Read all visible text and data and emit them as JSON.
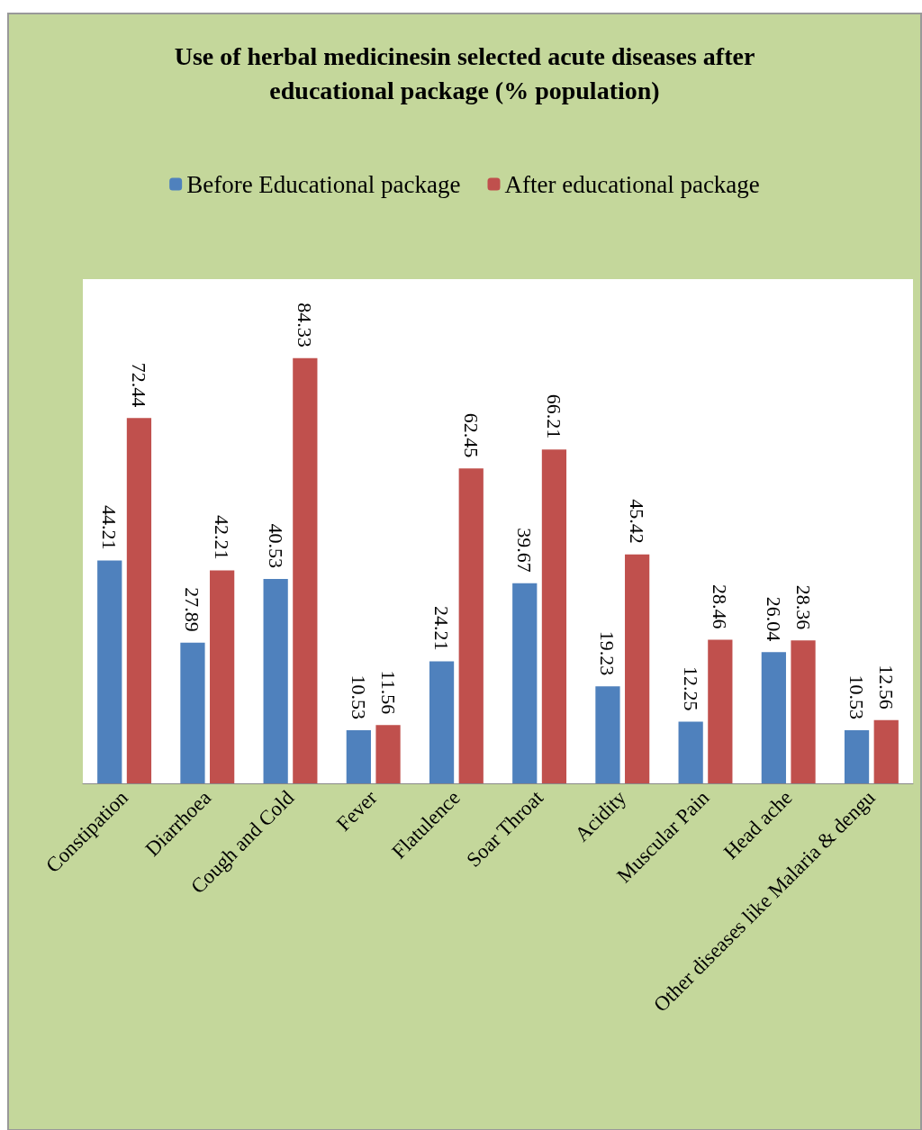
{
  "chart_data": {
    "type": "bar",
    "title": "Use of herbal medicinesin selected acute diseases after\neducational package (% population)",
    "categories": [
      "Constipation",
      "Diarrhoea",
      "Cough and Cold",
      "Fever",
      "Flatulence",
      "Soar Throat",
      "Acidity",
      "Muscular Pain",
      "Head ache",
      "Other diseases like Malaria & dengu"
    ],
    "series": [
      {
        "name": "Before Educational package",
        "color": "#4f81bd",
        "values": [
          44.21,
          27.89,
          40.53,
          10.53,
          24.21,
          39.67,
          19.23,
          12.25,
          26.04,
          10.53
        ]
      },
      {
        "name": "After educational package",
        "color": "#c0504d",
        "values": [
          72.44,
          42.21,
          84.33,
          11.56,
          62.45,
          66.21,
          45.42,
          28.46,
          28.36,
          12.56
        ]
      }
    ],
    "data_labels": true,
    "legend": "top",
    "grid": false
  }
}
